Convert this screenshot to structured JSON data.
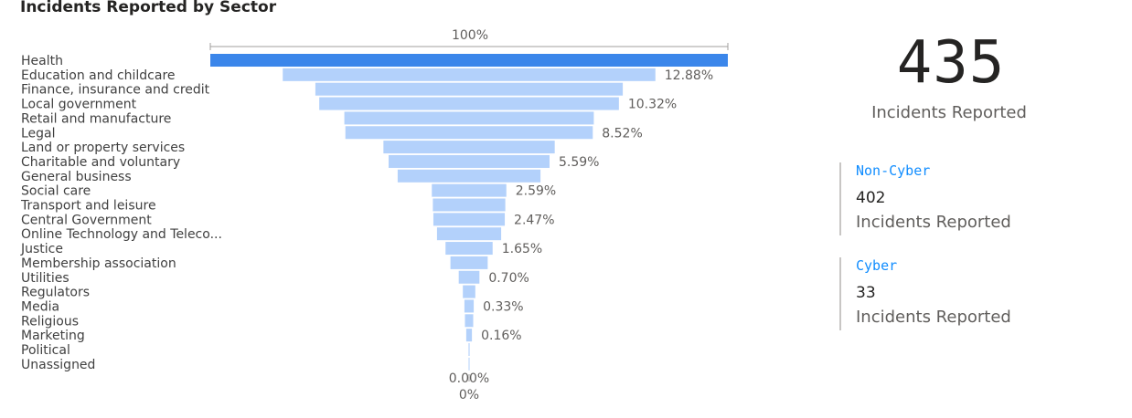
{
  "colors": {
    "highlight_bar": "#3b86ea",
    "bar": "#b3d1fb",
    "accent": "#118dff",
    "axis": "#a19f9d",
    "divider": "#c8c6c4"
  },
  "kpi": {
    "value": "435",
    "caption": "Incidents Reported"
  },
  "cards": {
    "non_cyber": {
      "title": "Non-Cyber",
      "value": "402",
      "caption": "Incidents Reported"
    },
    "cyber": {
      "title": "Cyber",
      "value": "33",
      "caption": "Incidents Reported"
    }
  },
  "chart_data": {
    "type": "bar",
    "subtype": "funnel",
    "title": "Incidents Reported by Sector",
    "top_label": "100%",
    "bottom_label": "0%",
    "categories": [
      "Health",
      "Education and childcare",
      "Finance, insurance and credit",
      "Local government",
      "Retail and manufacture",
      "Legal",
      "Land or property services",
      "Charitable and voluntary",
      "General business",
      "Social care",
      "Transport and leisure",
      "Central Government",
      "Online Technology and Teleco...",
      "Justice",
      "Membership association",
      "Utilities",
      "Regulators",
      "Media",
      "Religious",
      "Marketing",
      "Political",
      "Unassigned"
    ],
    "values": [
      100,
      72.0,
      59.4,
      57.9,
      48.2,
      47.8,
      33.1,
      31.1,
      27.6,
      14.4,
      14.0,
      13.8,
      12.4,
      9.1,
      7.2,
      4.0,
      2.4,
      1.8,
      1.6,
      1.1,
      0.2,
      0.0
    ],
    "value_labels": [
      "",
      "12.88%",
      "",
      "10.32%",
      "",
      "8.52%",
      "",
      "5.59%",
      "",
      "2.59%",
      "",
      "2.47%",
      "",
      "1.65%",
      "",
      "0.70%",
      "",
      "0.33%",
      "",
      "0.16%",
      "",
      "0.00%"
    ],
    "highlight_index": 0,
    "legend": "none",
    "grid": false
  }
}
